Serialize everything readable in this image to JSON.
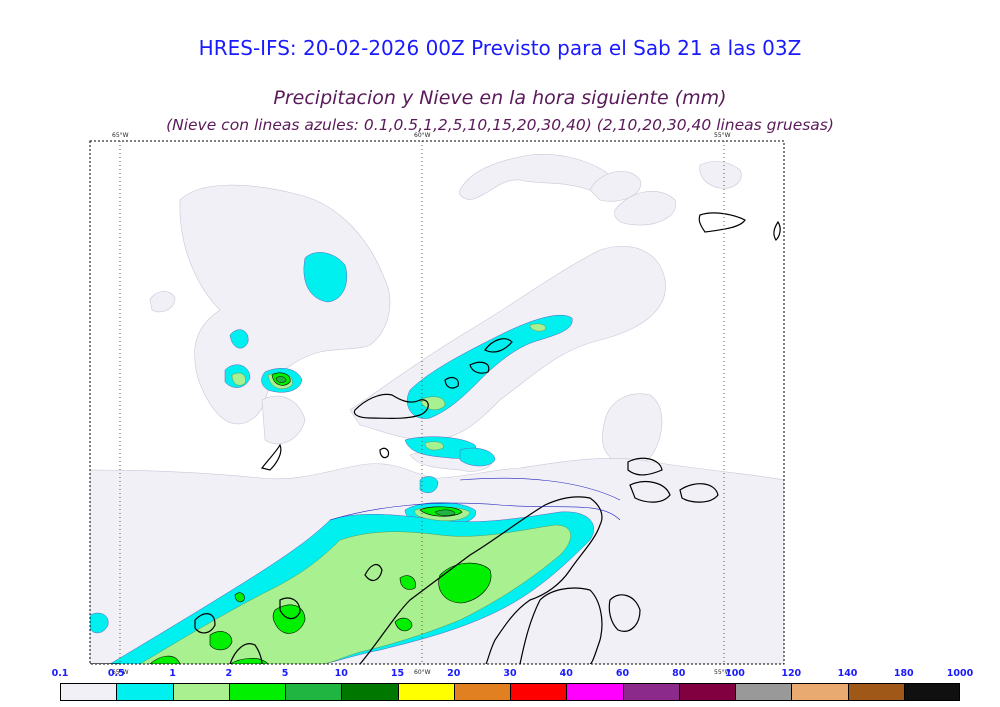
{
  "header": {
    "title": "HRES-IFS: 20-02-2026 00Z Previsto para el Sab 21 a las 03Z",
    "subtitle": "Precipitacion y Nieve en la hora siguiente (mm)",
    "subtitle2": "(Nieve con lineas azules: 0.1,0.5,1,2,5,10,15,20,30,40)  (2,10,20,30,40 lineas gruesas)"
  },
  "map": {
    "meridian_labels": [
      "65°W",
      "60°W",
      "55°W"
    ],
    "colors": {
      "v0_1": "#f0f0f6",
      "v0_5": "#00f0f0",
      "v1": "#a8f090",
      "v2": "#00f000",
      "v5": "#20b440",
      "v10": "#007800",
      "coast": "#000000",
      "snow_line": "#2020c0"
    }
  },
  "colorbar": {
    "labels": [
      "0.1",
      "0.5",
      "1",
      "2",
      "5",
      "10",
      "15",
      "20",
      "30",
      "40",
      "60",
      "80",
      "100",
      "120",
      "140",
      "180",
      "1000"
    ],
    "colors": [
      "#f0f0f6",
      "#00f0f0",
      "#a8f090",
      "#00f000",
      "#20b440",
      "#007800",
      "#ffff00",
      "#e08020",
      "#ff0000",
      "#ff00ff",
      "#8b2a8b",
      "#800040",
      "#999999",
      "#e8aa70",
      "#a05818",
      "#101010"
    ]
  }
}
